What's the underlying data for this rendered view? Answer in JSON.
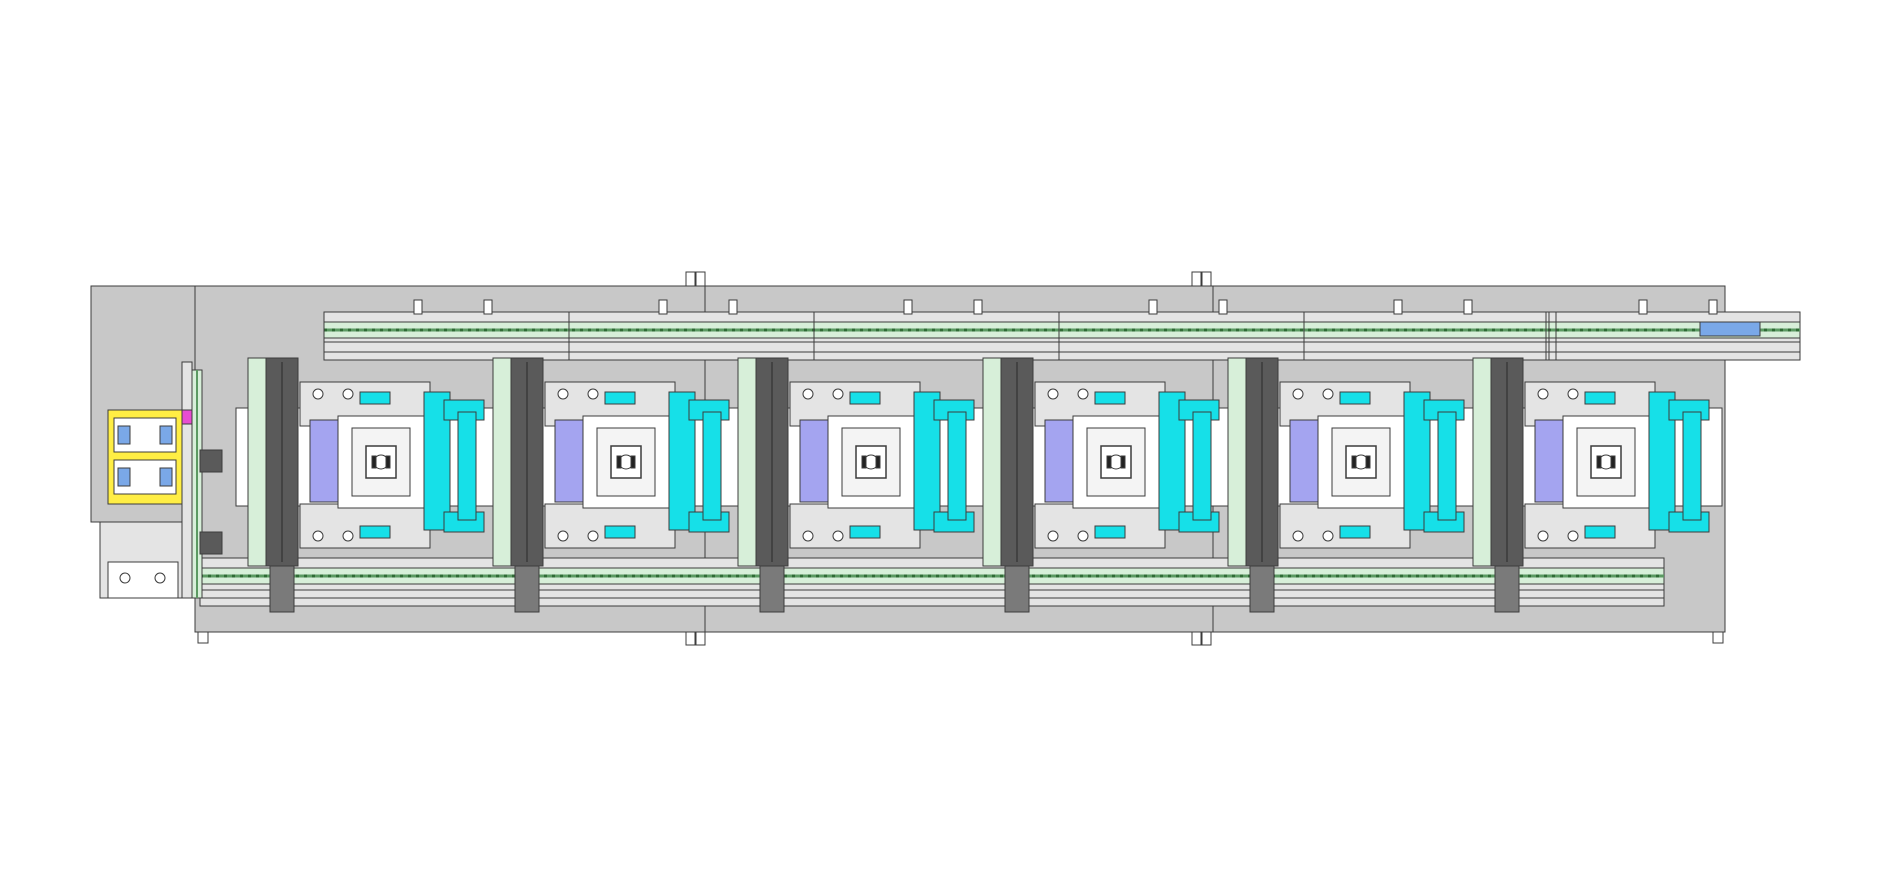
{
  "diagram": {
    "kind": "cad-top-view",
    "station_count": 6,
    "colors": {
      "frame": "#c8c8c8",
      "frame_dark": "#b4b4b4",
      "line": "#3c3c3c",
      "rail": "#e4e4e4",
      "guide_green": "#d7efd9",
      "chain_green": "#5b9a62",
      "cyan": "#16e0e8",
      "lavender": "#a4a4f0",
      "dark_block": "#5a5a5a",
      "white": "#ffffff",
      "yellow": "#ffee44",
      "blue_part": "#7aa8e8",
      "magenta": "#e84cd0"
    }
  }
}
